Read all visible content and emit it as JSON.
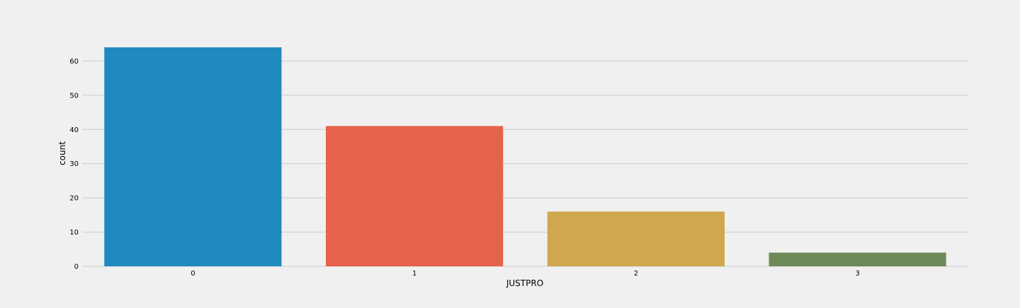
{
  "chart_data": {
    "type": "bar",
    "title": "",
    "xlabel": "JUSTPRO",
    "ylabel": "count",
    "categories": [
      "0",
      "1",
      "2",
      "3"
    ],
    "values": [
      64,
      41,
      16,
      4
    ],
    "colors": [
      "#1f8ac0",
      "#e5624b",
      "#cfa74d",
      "#6d8a58"
    ],
    "yticks": [
      0,
      10,
      20,
      30,
      40,
      50,
      60
    ],
    "ylim": [
      0,
      64
    ],
    "grid": "horizontal",
    "background": "#f0f0f0",
    "gridline_color": "#cbcbcb"
  }
}
